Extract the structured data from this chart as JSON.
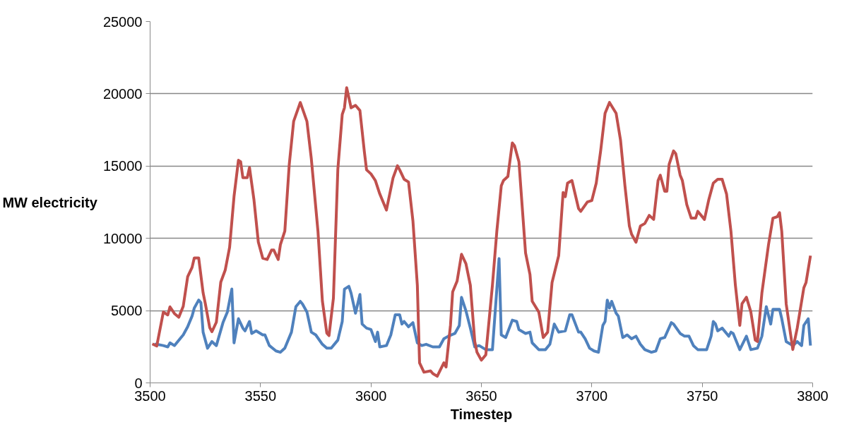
{
  "chart_data": {
    "type": "line",
    "xlabel": "Timestep",
    "ylabel": "MW electricity",
    "xlim": [
      3500,
      3800
    ],
    "xticks": [
      3500,
      3550,
      3600,
      3650,
      3700,
      3750,
      3800
    ],
    "ylim": [
      0,
      25000
    ],
    "yticks": [
      0,
      5000,
      10000,
      15000,
      20000,
      25000
    ],
    "grid": "y",
    "marker": "none",
    "line_style": "solid",
    "series": [
      {
        "color": "#4f81bd",
        "x": [
          3502,
          3503,
          3506,
          3508,
          3509,
          3511,
          3514,
          3515,
          3517,
          3519,
          3520,
          3522,
          3523,
          3524,
          3526,
          3528,
          3530,
          3533,
          3535,
          3537,
          3538,
          3540,
          3542,
          3543,
          3545,
          3546,
          3548,
          3551,
          3552,
          3554,
          3557,
          3559,
          3561,
          3564,
          3566,
          3568,
          3569,
          3571,
          3573,
          3575,
          3578,
          3580,
          3582,
          3585,
          3587,
          3588,
          3590,
          3591,
          3593,
          3595,
          3596,
          3598,
          3600,
          3602,
          3603,
          3604,
          3607,
          3609,
          3611,
          3613,
          3614,
          3615,
          3617,
          3619,
          3621,
          3623,
          3625,
          3628,
          3631,
          3633,
          3635,
          3638,
          3640,
          3641,
          3643,
          3645,
          3647,
          3649,
          3652,
          3655,
          3658,
          3659,
          3661,
          3664,
          3666,
          3667,
          3670,
          3672,
          3673,
          3676,
          3679,
          3681,
          3683,
          3685,
          3688,
          3690,
          3691,
          3694,
          3695,
          3697,
          3699,
          3701,
          3703,
          3705,
          3706,
          3707,
          3708,
          3709,
          3711,
          3712,
          3714,
          3716,
          3718,
          3720,
          3722,
          3724,
          3727,
          3729,
          3731,
          3733,
          3736,
          3737,
          3740,
          3742,
          3744,
          3746,
          3748,
          3752,
          3754,
          3755,
          3756,
          3757,
          3759,
          3762,
          3763,
          3764,
          3767,
          3770,
          3772,
          3775,
          3777,
          3779,
          3781,
          3782,
          3785,
          3786,
          3788,
          3791,
          3793,
          3795,
          3796,
          3798,
          3799
        ],
        "values": [
          2670,
          2670,
          2580,
          2490,
          2770,
          2580,
          3140,
          3320,
          3880,
          4620,
          5180,
          5730,
          5550,
          3510,
          2400,
          2860,
          2580,
          4170,
          4910,
          6490,
          2770,
          4440,
          3790,
          3600,
          4250,
          3420,
          3600,
          3320,
          3320,
          2580,
          2210,
          2120,
          2400,
          3510,
          5270,
          5640,
          5460,
          4910,
          3510,
          3320,
          2670,
          2400,
          2400,
          2960,
          4250,
          6490,
          6680,
          6210,
          4820,
          6120,
          4070,
          3790,
          3690,
          2860,
          3510,
          2490,
          2580,
          3320,
          4710,
          4710,
          4070,
          4250,
          3880,
          4170,
          2770,
          2580,
          2670,
          2490,
          2490,
          3050,
          3230,
          3420,
          3970,
          5920,
          4990,
          3790,
          2490,
          2580,
          2300,
          2300,
          8600,
          3320,
          3140,
          4340,
          4250,
          3690,
          3420,
          3510,
          2770,
          2300,
          2300,
          2670,
          4070,
          3510,
          3600,
          4710,
          4710,
          3510,
          3510,
          3050,
          2400,
          2210,
          2120,
          3980,
          4250,
          5730,
          5180,
          5640,
          4820,
          4620,
          3140,
          3320,
          3050,
          3230,
          2670,
          2300,
          2120,
          2210,
          3050,
          3140,
          4170,
          4070,
          3420,
          3230,
          3230,
          2580,
          2300,
          2300,
          3230,
          4250,
          4070,
          3600,
          3790,
          3230,
          3510,
          3420,
          2300,
          3230,
          2300,
          2400,
          3230,
          5270,
          4070,
          5090,
          5090,
          4440,
          2860,
          2580,
          2860,
          2580,
          3980,
          4440,
          2580
        ]
      },
      {
        "color": "#c0504d",
        "x": [
          3501,
          3503,
          3506,
          3508,
          3509,
          3511,
          3513,
          3515,
          3517,
          3519,
          3520,
          3522,
          3524,
          3525,
          3527,
          3528,
          3530,
          3532,
          3534,
          3536,
          3538,
          3540,
          3541,
          3542,
          3544,
          3545,
          3547,
          3549,
          3551,
          3553,
          3555,
          3556,
          3558,
          3559,
          3561,
          3563,
          3565,
          3568,
          3571,
          3573,
          3576,
          3578,
          3580,
          3581,
          3583,
          3585,
          3587,
          3588,
          3589,
          3591,
          3593,
          3595,
          3597,
          3598,
          3600,
          3602,
          3604,
          3607,
          3610,
          3612,
          3613,
          3615,
          3617,
          3619,
          3621,
          3622,
          3624,
          3627,
          3628,
          3630,
          3633,
          3634,
          3636,
          3637,
          3639,
          3641,
          3643,
          3645,
          3647,
          3648,
          3650,
          3652,
          3655,
          3657,
          3659,
          3660,
          3662,
          3664,
          3665,
          3667,
          3670,
          3672,
          3673,
          3676,
          3678,
          3680,
          3682,
          3685,
          3687,
          3688,
          3689,
          3691,
          3694,
          3695,
          3698,
          3700,
          3702,
          3704,
          3706,
          3708,
          3711,
          3713,
          3715,
          3717,
          3718,
          3720,
          3722,
          3724,
          3726,
          3728,
          3730,
          3731,
          3733,
          3734,
          3735,
          3737,
          3738,
          3740,
          3741,
          3743,
          3745,
          3747,
          3748,
          3751,
          3753,
          3755,
          3757,
          3759,
          3761,
          3763,
          3765,
          3767,
          3768,
          3770,
          3772,
          3774,
          3775,
          3777,
          3780,
          3782,
          3784,
          3785,
          3786,
          3788,
          3791,
          3793,
          3796,
          3797,
          3799
        ],
        "values": [
          2700,
          2550,
          4900,
          4700,
          5260,
          4800,
          4540,
          5300,
          7340,
          7990,
          8640,
          8640,
          6230,
          5490,
          3820,
          3540,
          4200,
          6970,
          7800,
          9380,
          12900,
          15400,
          15300,
          14200,
          14200,
          14900,
          12700,
          9740,
          8630,
          8540,
          9190,
          9190,
          8540,
          9560,
          10500,
          15100,
          18100,
          19400,
          18100,
          15500,
          10500,
          5670,
          3450,
          3270,
          5860,
          14760,
          18570,
          19030,
          20420,
          19030,
          19200,
          18840,
          16000,
          14740,
          14460,
          14000,
          13070,
          11960,
          14180,
          15020,
          14740,
          14090,
          13900,
          11210,
          6760,
          1390,
          740,
          830,
          650,
          460,
          1390,
          1100,
          3980,
          6300,
          7040,
          8900,
          8250,
          6760,
          2860,
          2120,
          1570,
          1940,
          6760,
          10500,
          13630,
          14000,
          14280,
          16600,
          16410,
          15300,
          8990,
          7500,
          5650,
          4900,
          3140,
          3510,
          6950,
          8800,
          13170,
          12880,
          13820,
          14000,
          12060,
          11870,
          12520,
          12620,
          13820,
          16050,
          18650,
          19400,
          18650,
          16790,
          13630,
          10850,
          10290,
          9730,
          10850,
          11030,
          11590,
          11310,
          14000,
          14370,
          13260,
          13260,
          15120,
          16050,
          15860,
          14370,
          14000,
          12330,
          11400,
          11400,
          11870,
          11310,
          12700,
          13820,
          14090,
          14090,
          13070,
          10480,
          6760,
          3980,
          5470,
          5930,
          4910,
          2960,
          2860,
          6210,
          9560,
          11400,
          11500,
          11780,
          10480,
          5470,
          2310,
          3790,
          6580,
          6950,
          8800
        ]
      }
    ]
  }
}
